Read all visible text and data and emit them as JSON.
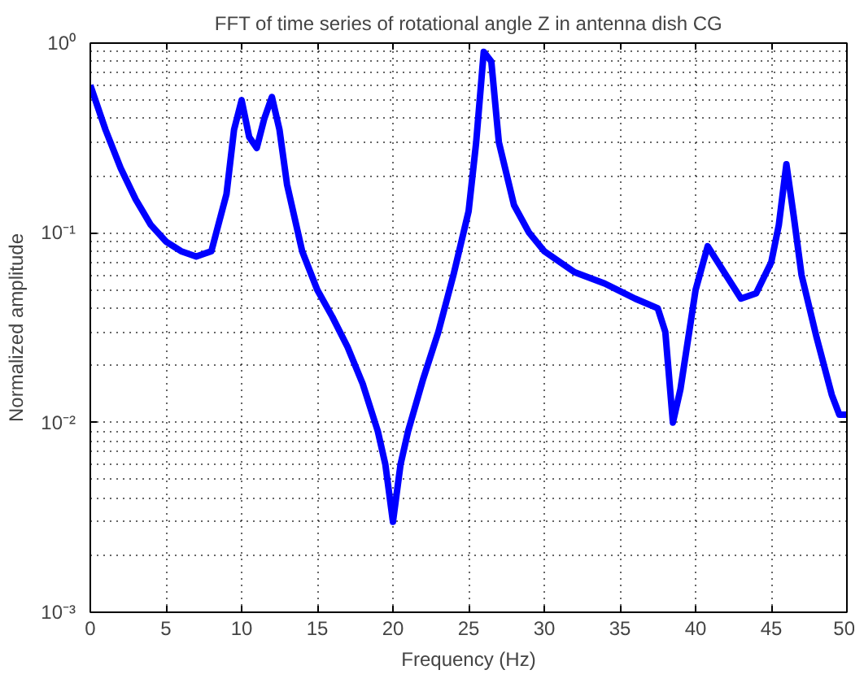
{
  "chart_data": {
    "type": "line",
    "title": "FFT of time series of rotational angle Z in antenna dish CG",
    "xlabel": "Frequency (Hz)",
    "ylabel": "Normalized amplitude",
    "log": "y",
    "grid": true,
    "marker": "none",
    "line_style": "solid",
    "xlim": [
      0,
      50
    ],
    "xticks": [
      0,
      5,
      10,
      15,
      20,
      25,
      30,
      35,
      40,
      45,
      50
    ],
    "ylim": [
      0.001,
      1
    ],
    "yticks": [
      {
        "value": 0.001,
        "label": "10⁻³"
      },
      {
        "value": 0.01,
        "label": "10⁻²"
      },
      {
        "value": 0.1,
        "label": "10⁻¹"
      },
      {
        "value": 1,
        "label": "10⁰"
      }
    ],
    "series": [
      {
        "color": "#0000ff",
        "x": [
          0,
          1,
          2,
          3,
          4,
          5,
          6,
          7,
          8,
          9,
          9.5,
          10,
          10.5,
          11,
          11.5,
          12,
          12.5,
          13,
          14,
          15,
          16,
          17,
          18,
          19,
          19.5,
          20,
          20.5,
          21,
          22,
          23,
          24,
          25,
          25.5,
          26,
          26.5,
          27,
          28,
          29,
          30,
          32,
          34,
          36,
          37.5,
          38,
          38.5,
          39,
          40,
          40.8,
          42,
          43,
          44,
          45,
          45.5,
          46,
          46.5,
          47,
          48,
          49,
          49.5,
          50
        ],
        "values": [
          0.6,
          0.35,
          0.22,
          0.15,
          0.11,
          0.09,
          0.08,
          0.075,
          0.08,
          0.16,
          0.35,
          0.5,
          0.32,
          0.28,
          0.4,
          0.52,
          0.35,
          0.18,
          0.08,
          0.05,
          0.036,
          0.025,
          0.016,
          0.009,
          0.006,
          0.003,
          0.006,
          0.009,
          0.017,
          0.03,
          0.06,
          0.13,
          0.3,
          0.9,
          0.8,
          0.3,
          0.14,
          0.1,
          0.08,
          0.062,
          0.054,
          0.045,
          0.04,
          0.03,
          0.01,
          0.015,
          0.05,
          0.085,
          0.06,
          0.045,
          0.048,
          0.07,
          0.11,
          0.23,
          0.12,
          0.06,
          0.028,
          0.014,
          0.011,
          0.011
        ]
      }
    ]
  }
}
